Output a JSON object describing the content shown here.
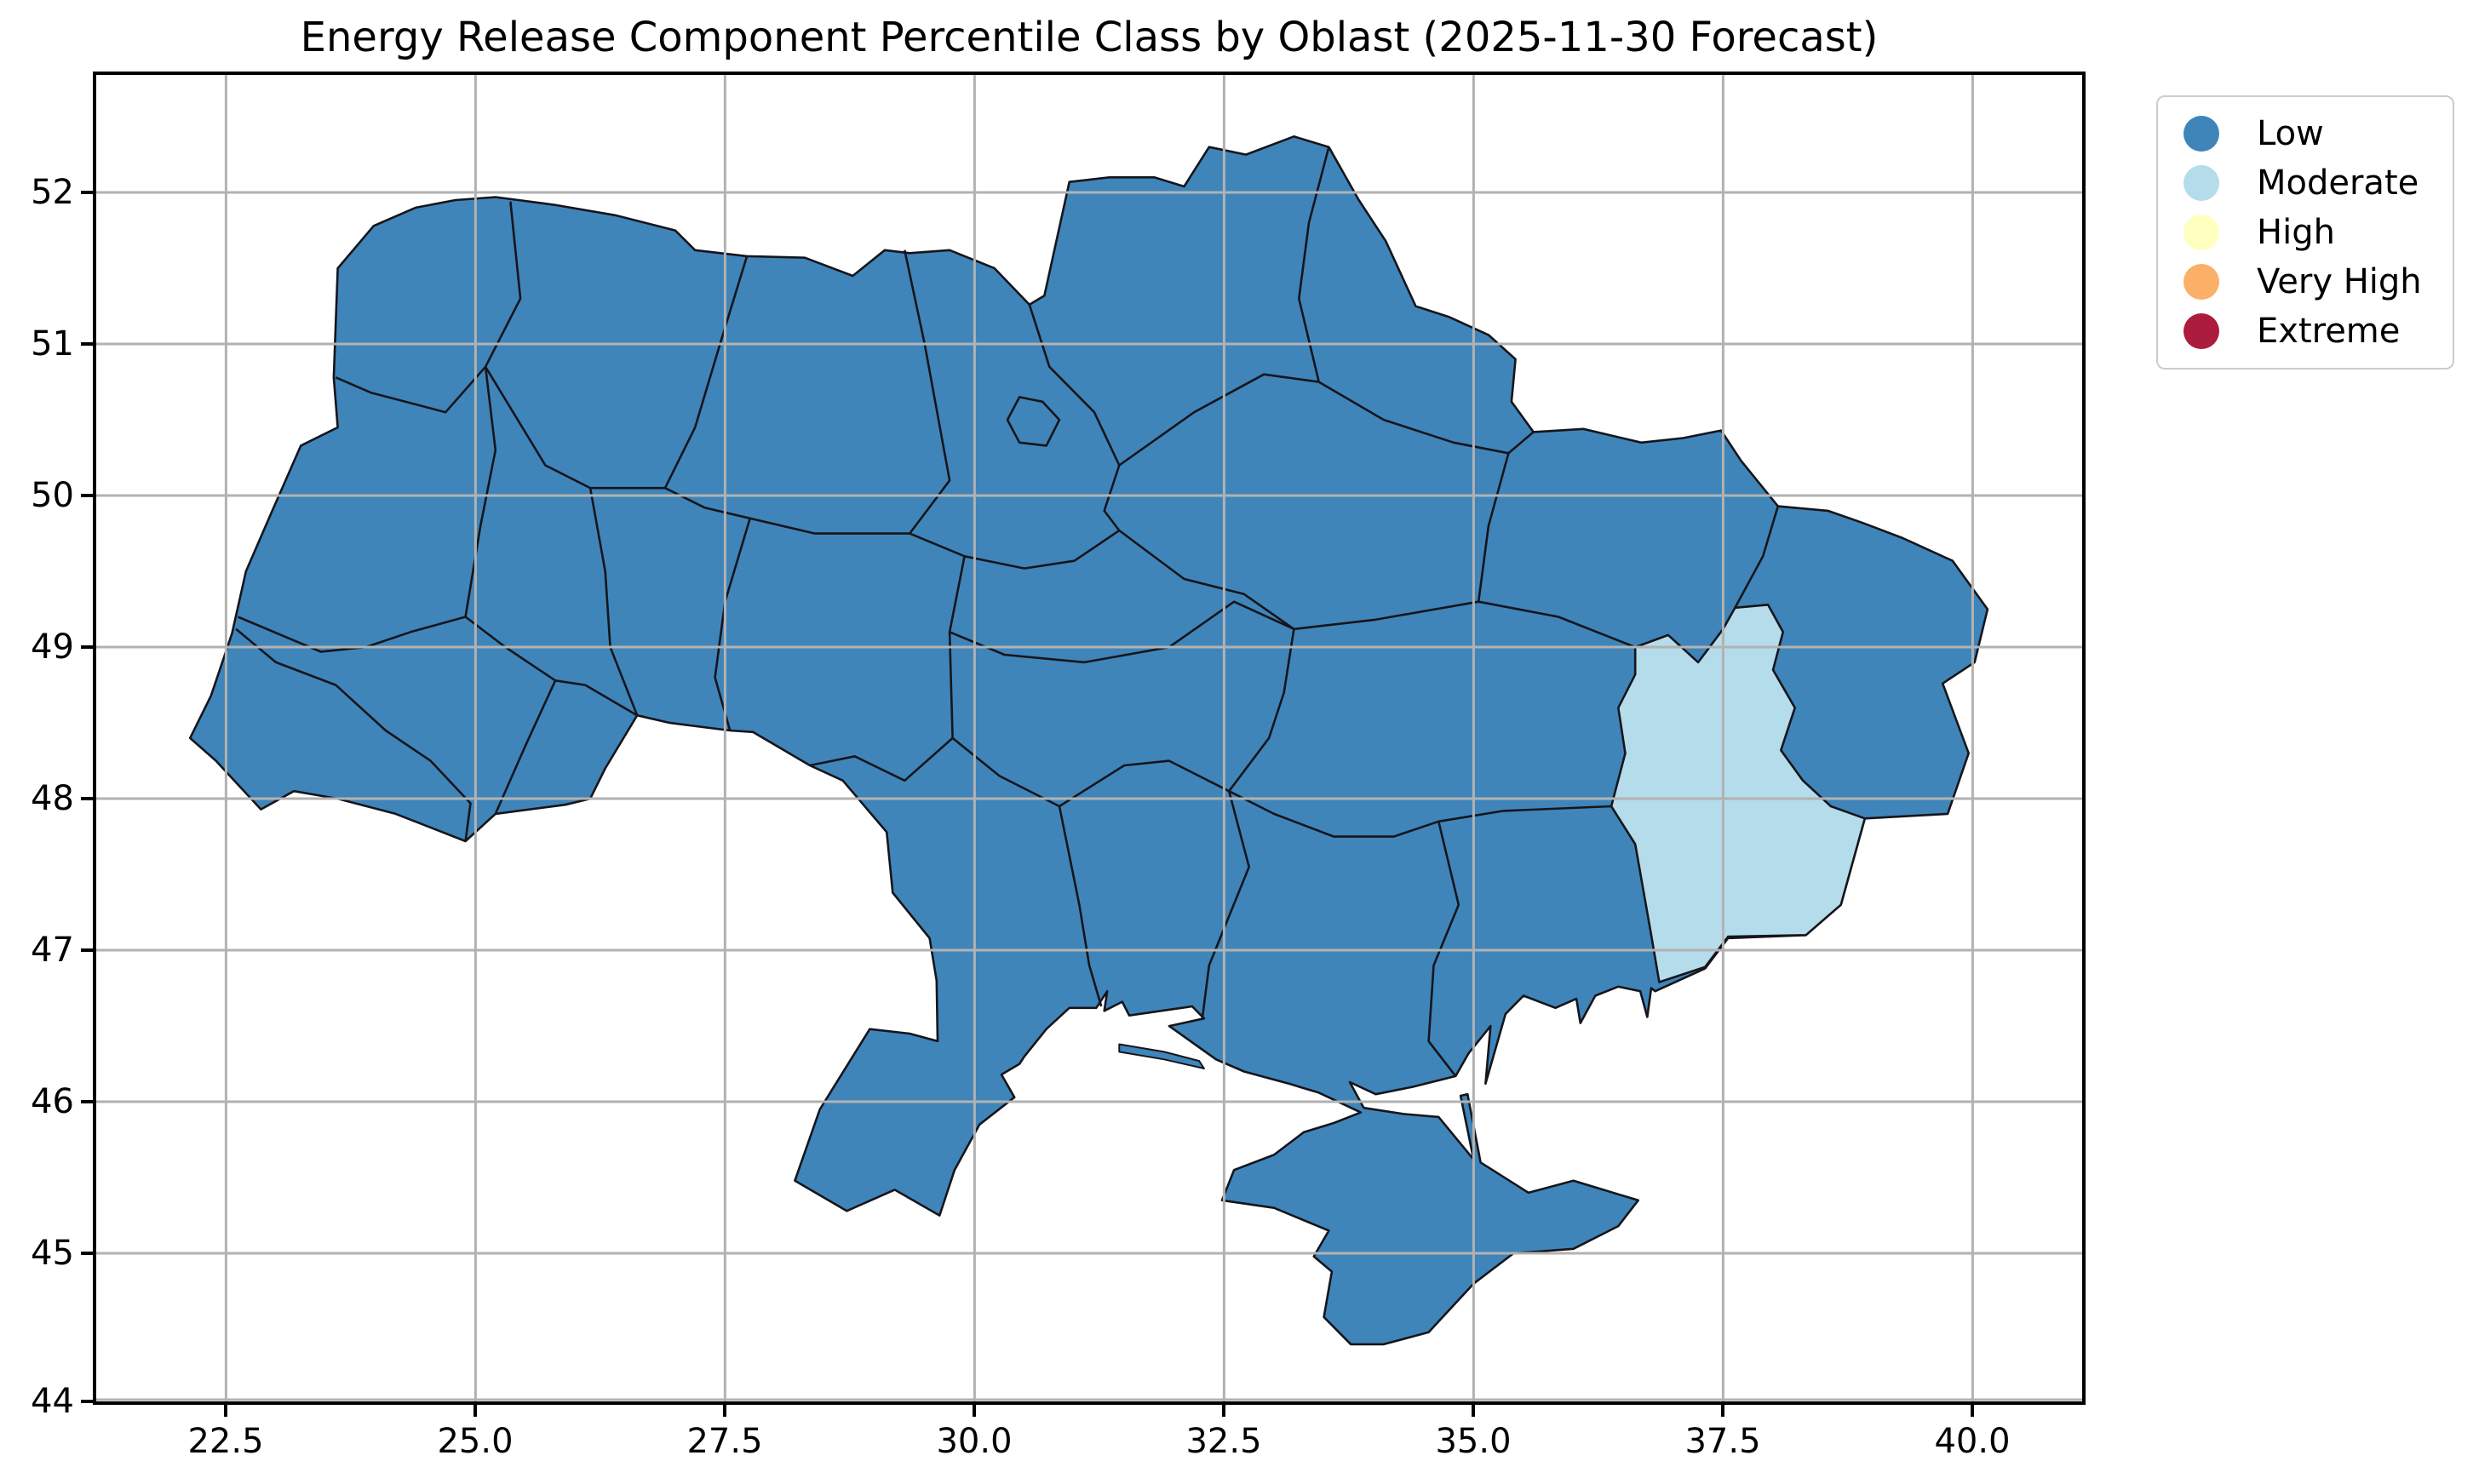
{
  "title": "Energy Release Component Percentile Class by Oblast (2025-11-30 Forecast)",
  "axes": {
    "x_ticks": [
      "22.5",
      "25.0",
      "27.5",
      "30.0",
      "32.5",
      "35.0",
      "37.5",
      "40.0"
    ],
    "y_ticks": [
      "52",
      "51",
      "50",
      "49",
      "48",
      "47",
      "46",
      "45",
      "44"
    ],
    "x_range": [
      21.2,
      41.1
    ],
    "y_range": [
      44.0,
      52.78
    ],
    "grid": true
  },
  "legend": {
    "items": [
      {
        "label": "Low"
      },
      {
        "label": "Moderate"
      },
      {
        "label": "High"
      },
      {
        "label": "Very High"
      },
      {
        "label": "Extreme"
      }
    ]
  },
  "chart_data": {
    "type": "choropleth-map",
    "title": "Energy Release Component Percentile Class by Oblast (2025-11-30 Forecast)",
    "region_level": "oblast",
    "country": "Ukraine",
    "classes": [
      "Low",
      "Moderate",
      "High",
      "Very High",
      "Extreme"
    ],
    "class_colors": {
      "Low": "#3F85BA",
      "Moderate": "#B5DCEA",
      "High": "#FFFFBF",
      "Very High": "#FBB067",
      "Extreme": "#AC1C3D"
    },
    "default_class": "Low",
    "region_classes": {
      "Donetsk": "Moderate"
    },
    "xlabel": "",
    "ylabel": "",
    "legend_position": "upper right outside",
    "grid": true
  },
  "colors": {
    "boundary": "#15151B",
    "grid": "#B2B2B2",
    "spine": "#000000",
    "legend_border": "#CCCCCC",
    "background": "#FFFFFF"
  }
}
